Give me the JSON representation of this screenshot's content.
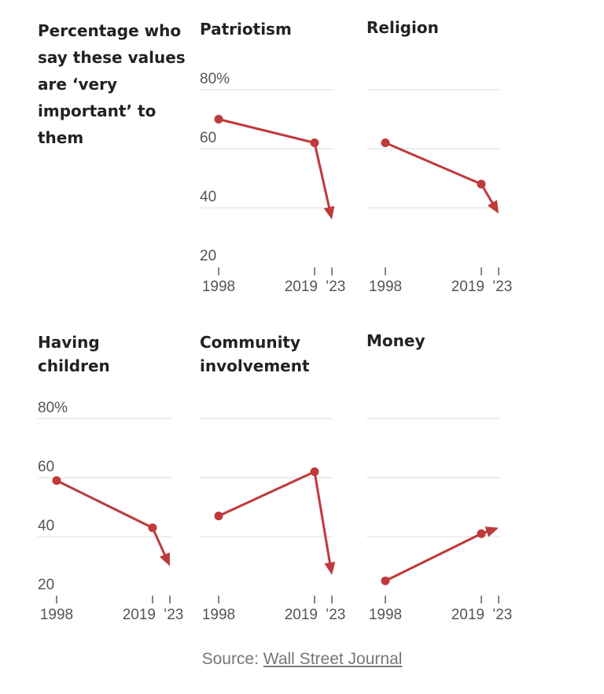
{
  "intro_text": "Percentage who say these values are ‘very important’ to them",
  "source": {
    "label": "Source:",
    "link_text": "Wall Street Journal"
  },
  "colors": {
    "line": "#c0393b",
    "grid": "#e3e3e3",
    "text": "#222222",
    "muted": "#555555"
  },
  "chart_data": [
    {
      "type": "line",
      "title": "Patriotism",
      "x": [
        1998,
        2019,
        2023
      ],
      "values": [
        70,
        62,
        36
      ],
      "ylim": [
        20,
        80
      ],
      "yticks": [
        "80%",
        "60",
        "40",
        "20"
      ],
      "xticks": [
        "1998",
        "2019",
        "’23"
      ]
    },
    {
      "type": "line",
      "title": "Religion",
      "x": [
        1998,
        2019,
        2023
      ],
      "values": [
        62,
        48,
        38
      ],
      "ylim": [
        20,
        80
      ],
      "yticks": [],
      "xticks": [
        "1998",
        "2019",
        "’23"
      ]
    },
    {
      "type": "line",
      "title": "Having children",
      "x": [
        1998,
        2019,
        2023
      ],
      "values": [
        59,
        43,
        30
      ],
      "ylim": [
        20,
        80
      ],
      "yticks": [
        "80%",
        "60",
        "40",
        "20"
      ],
      "xticks": [
        "1998",
        "2019",
        "’23"
      ]
    },
    {
      "type": "line",
      "title": "Community involvement",
      "x": [
        1998,
        2019,
        2023
      ],
      "values": [
        47,
        62,
        27
      ],
      "ylim": [
        20,
        80
      ],
      "yticks": [],
      "xticks": [
        "1998",
        "2019",
        "’23"
      ]
    },
    {
      "type": "line",
      "title": "Money",
      "x": [
        1998,
        2019,
        2023
      ],
      "values": [
        25,
        41,
        43
      ],
      "ylim": [
        20,
        80
      ],
      "yticks": [],
      "xticks": [
        "1998",
        "2019",
        "’23"
      ]
    }
  ]
}
